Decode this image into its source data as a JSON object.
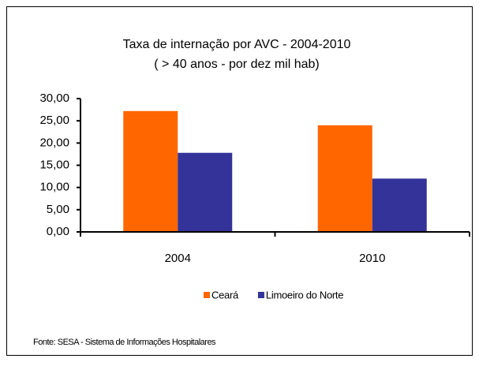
{
  "chart_data": {
    "type": "bar",
    "title": "Taxa de internação por AVC - 2004-2010",
    "subtitle": "( > 40 anos - por dez mil hab)",
    "categories": [
      "2004",
      "2010"
    ],
    "series": [
      {
        "name": "Ceará",
        "color": "#ff6600",
        "values": [
          27.2,
          24.0
        ]
      },
      {
        "name": "Limoeiro do Norte",
        "color": "#333399",
        "values": [
          17.8,
          12.0
        ]
      }
    ],
    "ylim": [
      0,
      30
    ],
    "yticks": [
      {
        "value": 0,
        "label": "0,00"
      },
      {
        "value": 5,
        "label": "5,00"
      },
      {
        "value": 10,
        "label": "10,00"
      },
      {
        "value": 15,
        "label": "15,00"
      },
      {
        "value": 20,
        "label": "20,00"
      },
      {
        "value": 25,
        "label": "25,00"
      },
      {
        "value": 30,
        "label": "30,00"
      }
    ],
    "source": "Fonte: SESA - Sistema de Informações Hospitalares"
  }
}
